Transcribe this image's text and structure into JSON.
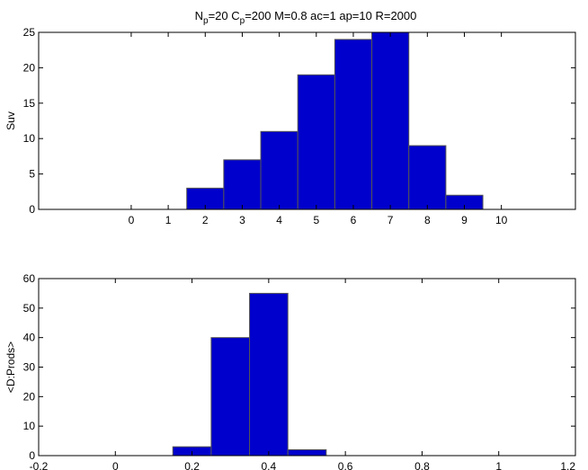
{
  "figure": {
    "title": {
      "segments": [
        {
          "text": "N",
          "sub": false
        },
        {
          "text": "p",
          "sub": true
        },
        {
          "text": "=20 C",
          "sub": false
        },
        {
          "text": "p",
          "sub": true
        },
        {
          "text": "=200 M=0.8 ac=1  ap=10  R=2000",
          "sub": false
        }
      ]
    }
  },
  "chart_data": [
    {
      "type": "bar",
      "ylabel": "Suv",
      "xlim": [
        -2.5,
        12
      ],
      "ylim": [
        0,
        25
      ],
      "x_ticks": [
        0,
        1,
        2,
        3,
        4,
        5,
        6,
        7,
        8,
        9,
        10
      ],
      "y_ticks": [
        0,
        5,
        10,
        15,
        20,
        25
      ],
      "bar_width": 1,
      "x": [
        0,
        1,
        2,
        3,
        4,
        5,
        6,
        7,
        8,
        9,
        10
      ],
      "values": [
        0,
        0,
        3,
        7,
        11,
        19,
        24,
        25,
        9,
        2,
        0
      ],
      "colors": {
        "bar_fill": "#0000cc",
        "bar_edge": "#555555"
      }
    },
    {
      "type": "bar",
      "ylabel": "<D:Prods>",
      "xlim": [
        -0.2,
        1.2
      ],
      "ylim": [
        0,
        60
      ],
      "x_ticks": [
        "-0.2",
        "0",
        "0.2",
        "0.4",
        "0.6",
        "0.8",
        "1",
        "1.2"
      ],
      "y_ticks": [
        0,
        10,
        20,
        30,
        40,
        50,
        60
      ],
      "bar_width": 0.1,
      "x": [
        0,
        0.1,
        0.2,
        0.3,
        0.4,
        0.5,
        0.6,
        0.7,
        0.8,
        0.9,
        1.0
      ],
      "values": [
        0,
        0,
        3,
        40,
        55,
        2,
        0,
        0,
        0,
        0,
        0
      ],
      "colors": {
        "bar_fill": "#0000cc",
        "bar_edge": "#555555"
      }
    }
  ]
}
